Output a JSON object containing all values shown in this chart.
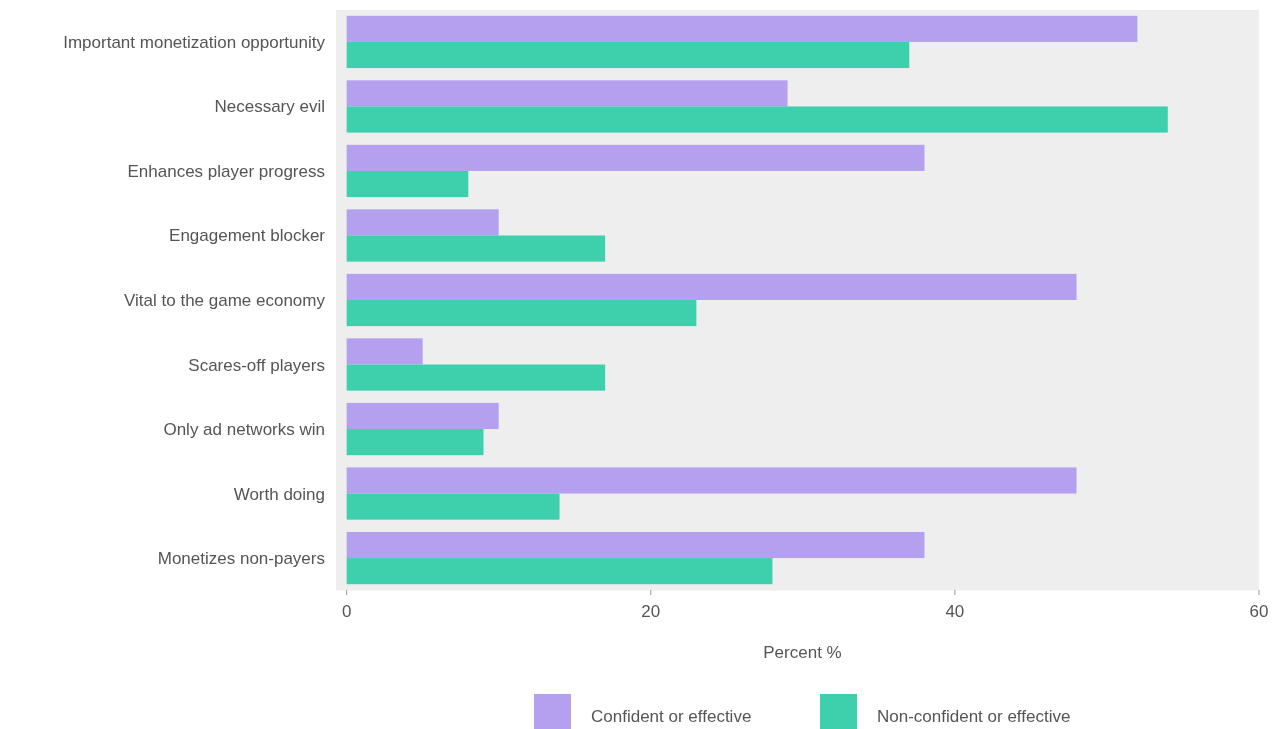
{
  "chart_data": {
    "type": "bar",
    "orientation": "horizontal",
    "xlabel": "Percent %",
    "categories": [
      "Important monetization opportunity",
      "Necessary evil",
      "Enhances player progress",
      "Engagement blocker",
      "Vital to the game economy",
      "Scares-off players",
      "Only ad networks win",
      "Worth doing",
      "Monetizes non-payers"
    ],
    "series": [
      {
        "name": "Confident or effective",
        "color": "#b5a0f0",
        "values": [
          52,
          29,
          38,
          10,
          48,
          5,
          10,
          48,
          38
        ]
      },
      {
        "name": "Non-confident or effective",
        "color": "#3ecfac",
        "values": [
          37,
          54,
          8,
          17,
          23,
          17,
          9,
          14,
          28
        ]
      }
    ],
    "xlim": [
      -0.7,
      60
    ],
    "xticks": [
      0,
      20,
      40,
      60
    ],
    "grid": false,
    "legend": "bottom"
  }
}
